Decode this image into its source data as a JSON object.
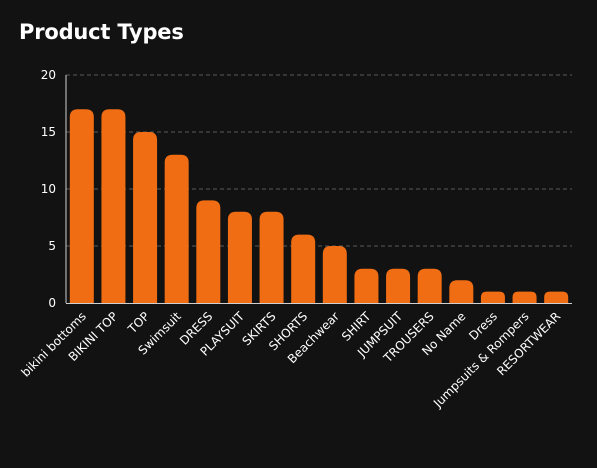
{
  "panel": {
    "title": "Product Types"
  },
  "colors": {
    "background": "#121212",
    "bar": "#F06D14",
    "grid": "#5a5a5a",
    "axis": "#d0d0d0",
    "text": "#ffffff"
  },
  "chart_data": {
    "type": "bar",
    "title": "Product Types",
    "xlabel": "",
    "ylabel": "",
    "categories": [
      "bikini bottoms",
      "BIKINI TOP",
      "TOP",
      "Swimsuit",
      "DRESS",
      "PLAYSUIT",
      "SKIRTS",
      "SHORTS",
      "Beachwear",
      "SHIRT",
      "JUMPSUIT",
      "TROUSERS",
      "No Name",
      "Dress",
      "Jumpsuits & Rompers",
      "RESORTWEAR"
    ],
    "values": [
      17,
      17,
      15,
      13,
      9,
      8,
      8,
      6,
      5,
      3,
      3,
      3,
      2,
      1,
      1,
      1
    ],
    "ylim": [
      0,
      20
    ],
    "yticks": [
      0,
      5,
      10,
      15,
      20
    ],
    "grid": true,
    "legend": "none"
  }
}
